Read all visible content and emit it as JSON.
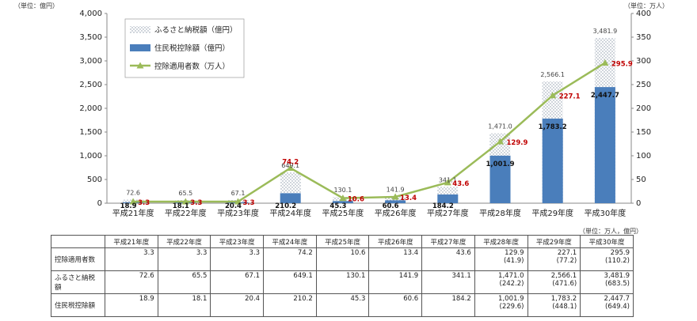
{
  "units": {
    "left": "（単位：億円）",
    "right": "（単位：万人）",
    "table": "（単位：万人，億円）"
  },
  "chart_data": {
    "type": "bar",
    "categories": [
      "平成21年度",
      "平成22年度",
      "平成23年度",
      "平成24年度",
      "平成25年度",
      "平成26年度",
      "平成27年度",
      "平成28年度",
      "平成29年度",
      "平成30年度"
    ],
    "series": [
      {
        "name": "ふるさと納税額（億円）",
        "type": "bar-dotted",
        "axis": "left",
        "values": [
          72.6,
          65.5,
          67.1,
          649.1,
          130.1,
          141.9,
          341.1,
          1471.0,
          2566.1,
          3481.9
        ],
        "labels": [
          "72.6",
          "65.5",
          "67.1",
          "649.1",
          "130.1",
          "141.9",
          "341.1",
          "1,471.0",
          "2,566.1",
          "3,481.9"
        ]
      },
      {
        "name": "住民税控除額（億円）",
        "type": "bar",
        "axis": "left",
        "values": [
          18.9,
          18.1,
          20.4,
          210.2,
          45.3,
          60.6,
          184.2,
          1001.9,
          1783.2,
          2447.7
        ],
        "labels": [
          "18.9",
          "18.1",
          "20.4",
          "210.2",
          "45.3",
          "60.6",
          "184.2",
          "1,001.9",
          "1,783.2",
          "2,447.7"
        ]
      },
      {
        "name": "控除適用者数（万人）",
        "type": "line",
        "axis": "right",
        "values": [
          3.3,
          3.3,
          3.3,
          74.2,
          10.6,
          13.4,
          43.6,
          129.9,
          227.1,
          295.9
        ],
        "labels": [
          "3.3",
          "3.3",
          "3.3",
          "74.2",
          "10.6",
          "13.4",
          "43.6",
          "129.9",
          "227.1",
          "295.9"
        ]
      }
    ],
    "ylim": [
      0,
      4000
    ],
    "y2lim": [
      0,
      400
    ],
    "yticks": [
      "0",
      "500",
      "1,000",
      "1,500",
      "2,000",
      "2,500",
      "3,000",
      "3,500",
      "4,000"
    ],
    "y2ticks": [
      "0",
      "50",
      "100",
      "150",
      "200",
      "250",
      "300",
      "350",
      "400"
    ],
    "legend": "top-left",
    "colors": {
      "donation_bar": "#b3bcc8",
      "deduction_bar": "#4a7ebb",
      "line": "#9bbb59",
      "line_label": "#c00000",
      "text": "#222222"
    }
  },
  "table": {
    "headers": [
      "",
      "平成21年度",
      "平成22年度",
      "平成23年度",
      "平成24年度",
      "平成25年度",
      "平成26年度",
      "平成27年度",
      "平成28年度",
      "平成29年度",
      "平成30年度"
    ],
    "rows": [
      {
        "label": "控除適用者数",
        "cells": [
          [
            "3.3",
            ""
          ],
          [
            "3.3",
            ""
          ],
          [
            "3.3",
            ""
          ],
          [
            "74.2",
            ""
          ],
          [
            "10.6",
            ""
          ],
          [
            "13.4",
            ""
          ],
          [
            "43.6",
            ""
          ],
          [
            "129.9",
            "(41.9)"
          ],
          [
            "227.1",
            "(77.2)"
          ],
          [
            "295.9",
            "(110.2)"
          ]
        ]
      },
      {
        "label": "ふるさと納税額",
        "cells": [
          [
            "72.6",
            ""
          ],
          [
            "65.5",
            ""
          ],
          [
            "67.1",
            ""
          ],
          [
            "649.1",
            ""
          ],
          [
            "130.1",
            ""
          ],
          [
            "141.9",
            ""
          ],
          [
            "341.1",
            ""
          ],
          [
            "1,471.0",
            "(242.2)"
          ],
          [
            "2,566.1",
            "(471.6)"
          ],
          [
            "3,481.9",
            "(683.5)"
          ]
        ]
      },
      {
        "label": "住民税控除額",
        "cells": [
          [
            "18.9",
            ""
          ],
          [
            "18.1",
            ""
          ],
          [
            "20.4",
            ""
          ],
          [
            "210.2",
            ""
          ],
          [
            "45.3",
            ""
          ],
          [
            "60.6",
            ""
          ],
          [
            "184.2",
            ""
          ],
          [
            "1,001.9",
            "(229.6)"
          ],
          [
            "1,783.2",
            "(448.1)"
          ],
          [
            "2,447.7",
            "(649.4)"
          ]
        ]
      }
    ]
  }
}
